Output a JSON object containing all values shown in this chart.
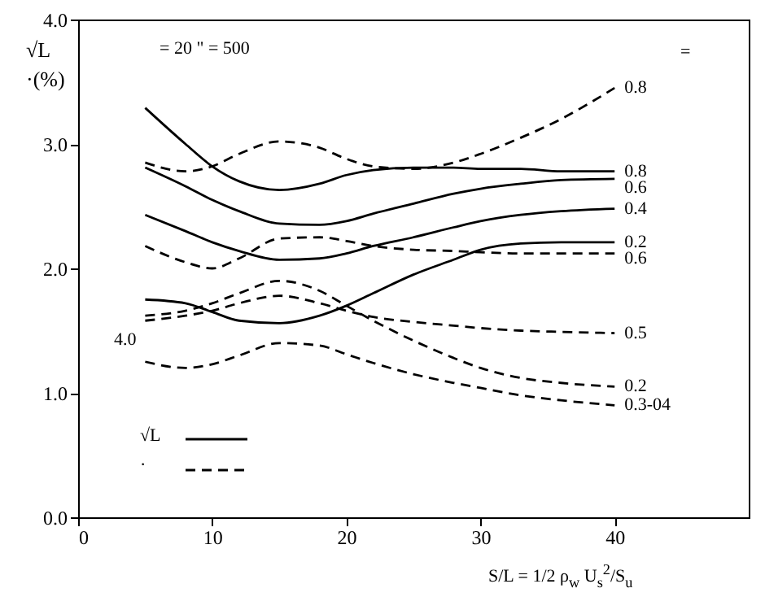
{
  "chart_data": {
    "type": "line",
    "ylabel": "√L\n·(%)",
    "xlabel": "S/L = 1/2  ρ$_{w}$ U$_{s}$$^{2}$/S$_{u}$",
    "x": [
      5,
      8,
      10,
      12,
      15,
      18,
      20,
      22,
      25,
      28,
      30,
      33,
      36,
      40
    ],
    "series": [
      {
        "name": "0.8",
        "color": "#000000",
        "line_style": "solid",
        "values": [
          3.29,
          3.0,
          2.82,
          2.7,
          2.63,
          2.68,
          2.75,
          2.79,
          2.81,
          2.81,
          2.8,
          2.8,
          2.78,
          2.78
        ]
      },
      {
        "name": "0.6",
        "color": "#000000",
        "line_style": "solid",
        "values": [
          2.81,
          2.66,
          2.55,
          2.46,
          2.36,
          2.35,
          2.38,
          2.44,
          2.52,
          2.6,
          2.64,
          2.68,
          2.71,
          2.72
        ]
      },
      {
        "name": "0.4",
        "color": "#000000",
        "line_style": "solid",
        "values": [
          2.43,
          2.3,
          2.21,
          2.14,
          2.07,
          2.08,
          2.12,
          2.18,
          2.25,
          2.33,
          2.38,
          2.43,
          2.46,
          2.48
        ]
      },
      {
        "name": "0.2",
        "color": "#000000",
        "line_style": "solid",
        "values": [
          1.75,
          1.72,
          1.65,
          1.58,
          1.56,
          1.62,
          1.7,
          1.8,
          1.95,
          2.07,
          2.15,
          2.2,
          2.21,
          2.21
        ]
      },
      {
        "name": "0.8",
        "color": "#000000",
        "line_style": "dashed",
        "values": [
          2.85,
          2.78,
          2.82,
          2.92,
          3.02,
          2.97,
          2.88,
          2.82,
          2.8,
          2.85,
          2.92,
          3.05,
          3.2,
          3.45
        ]
      },
      {
        "name": "0.6",
        "color": "#000000",
        "line_style": "dashed",
        "values": [
          2.18,
          2.05,
          2.0,
          2.08,
          2.24,
          2.25,
          2.22,
          2.18,
          2.15,
          2.14,
          2.13,
          2.12,
          2.12,
          2.12
        ]
      },
      {
        "name": "0.5",
        "color": "#000000",
        "line_style": "dashed",
        "values": [
          1.58,
          1.62,
          1.66,
          1.72,
          1.78,
          1.72,
          1.66,
          1.61,
          1.57,
          1.54,
          1.52,
          1.5,
          1.49,
          1.48
        ]
      },
      {
        "name": "0.2",
        "color": "#000000",
        "line_style": "dashed",
        "values": [
          1.62,
          1.66,
          1.72,
          1.8,
          1.9,
          1.82,
          1.7,
          1.58,
          1.42,
          1.28,
          1.2,
          1.12,
          1.08,
          1.05
        ]
      },
      {
        "name": "0.3-04",
        "color": "#000000",
        "line_style": "dashed",
        "values": [
          1.25,
          1.2,
          1.23,
          1.3,
          1.4,
          1.38,
          1.31,
          1.24,
          1.15,
          1.08,
          1.04,
          0.98,
          0.94,
          0.9
        ]
      }
    ],
    "annotations": [
      "= 20  \" = 500",
      "=",
      "4.0",
      "√L",
      "·"
    ],
    "xlim": [
      0,
      50
    ],
    "xticks": [
      0,
      10,
      20,
      30,
      40
    ],
    "ylim": [
      0,
      4
    ],
    "yticks": [
      {
        "value": 0,
        "label": "0.0"
      },
      {
        "value": 1,
        "label": "1.0"
      },
      {
        "value": 2,
        "label": "2.0"
      },
      {
        "value": 3,
        "label": "3.0"
      },
      {
        "value": 4,
        "label": "4.0"
      }
    ],
    "grid": false
  }
}
